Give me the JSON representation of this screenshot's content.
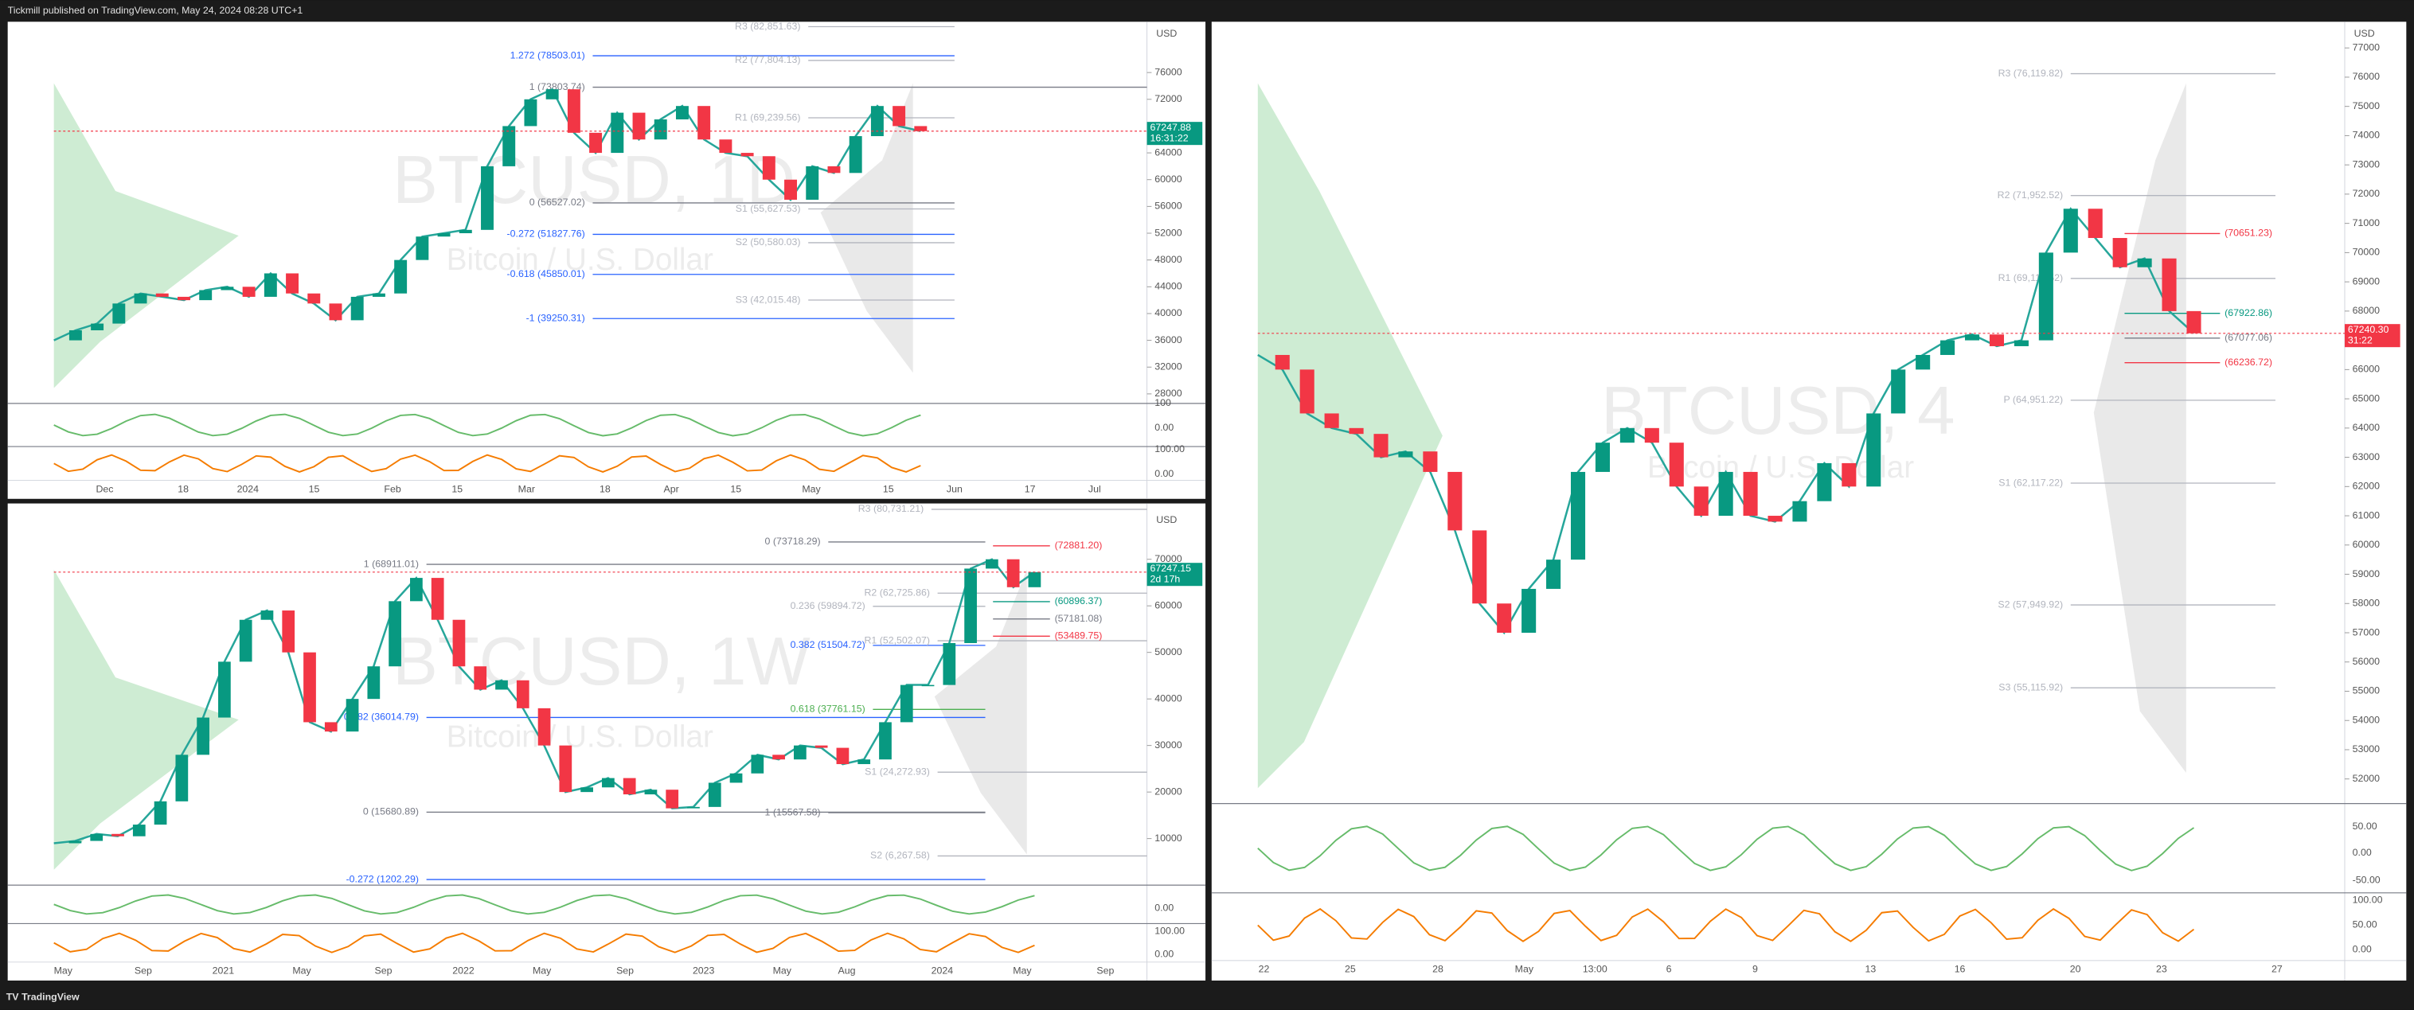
{
  "header": {
    "text": "Tickmill published on TradingView.com, May 24, 2024 08:28 UTC+1"
  },
  "footer": {
    "brand": "TradingView"
  },
  "panels": [
    {
      "symbol": "BTCUSD, 1D",
      "description": "Bitcoin / U.S. Dollar",
      "currency": "USD",
      "price_range": [
        83586,
        26575
      ],
      "price_ticks": [
        76000,
        72000,
        64000,
        60000,
        56000,
        52000,
        48000,
        44000,
        40000,
        36000,
        32000,
        28000
      ],
      "time_labels": [
        "Dec",
        "18",
        "2024",
        "15",
        "Feb",
        "15",
        "Mar",
        "18",
        "Apr",
        "15",
        "May",
        "15",
        "Jun",
        "17",
        "Jul"
      ],
      "levels": [
        {
          "label": "R3 (82,851.63)",
          "value": 82851.63,
          "color": "#b2b5be"
        },
        {
          "label": "1.272 (78503.01)",
          "value": 78503.01,
          "color": "#2962ff"
        },
        {
          "label": "R2 (77,804.13)",
          "value": 77804.13,
          "color": "#b2b5be"
        },
        {
          "label": "1 (73803.74)",
          "value": 73803.74,
          "color": "#787b86"
        },
        {
          "label": "R1 (69,239.56)",
          "value": 69239.56,
          "color": "#b2b5be"
        },
        {
          "label": "0 (56527.02)",
          "value": 56527.02,
          "color": "#787b86"
        },
        {
          "label": "S1 (55,627.53)",
          "value": 55627.53,
          "color": "#b2b5be"
        },
        {
          "label": "-0.272 (51827.76)",
          "value": 51827.76,
          "color": "#2962ff"
        },
        {
          "label": "S2 (50,580.03)",
          "value": 50580.03,
          "color": "#b2b5be"
        },
        {
          "label": "-0.618 (45850.01)",
          "value": 45850.01,
          "color": "#2962ff"
        },
        {
          "label": "S3 (42,015.48)",
          "value": 42015.48,
          "color": "#b2b5be"
        },
        {
          "label": "-1 (39250.31)",
          "value": 39250.31,
          "color": "#2962ff"
        }
      ],
      "closes": [
        36000,
        37500,
        38500,
        41500,
        43000,
        42500,
        42000,
        43500,
        44000,
        42500,
        46000,
        43000,
        41500,
        39000,
        42500,
        43000,
        48000,
        51500,
        52000,
        52500,
        62000,
        68000,
        72000,
        73500,
        67000,
        64000,
        70000,
        66000,
        69000,
        71000,
        66000,
        64000,
        63500,
        60000,
        57000,
        62000,
        61000,
        66500,
        71000,
        68000,
        67247.88
      ],
      "last_price": {
        "label": "67247.88",
        "value": 67247.88,
        "countdown": "16:31:22"
      },
      "indicator_ticks": [
        "100",
        "0.00",
        "100.00",
        "0.00"
      ]
    },
    {
      "symbol": "BTCUSD, 1W",
      "description": "Bitcoin / U.S. Dollar",
      "currency": "USD",
      "price_range": [
        81000,
        0
      ],
      "price_ticks": [
        70000,
        60000,
        50000,
        40000,
        30000,
        20000,
        10000
      ],
      "time_labels": [
        "May",
        "Sep",
        "2021",
        "May",
        "Sep",
        "2022",
        "May",
        "Sep",
        "2023",
        "May",
        "Aug",
        "2024",
        "May",
        "Sep"
      ],
      "levels": [
        {
          "label": "R3 (80,731.21)",
          "value": 80731.21,
          "color": "#b2b5be"
        },
        {
          "label": "0 (73718.29)",
          "value": 73718.29,
          "color": "#787b86"
        },
        {
          "label": "(72881.20)",
          "value": 72881.2,
          "color": "#f23645"
        },
        {
          "label": "1 (68911.01)",
          "value": 68911.01,
          "color": "#787b86"
        },
        {
          "label": "R2 (62,725.86)",
          "value": 62725.86,
          "color": "#b2b5be"
        },
        {
          "label": "(60896.37)",
          "value": 60896.37,
          "color": "#089981"
        },
        {
          "label": "0.236 (59894.72)",
          "value": 59894.72,
          "color": "#b2b5be"
        },
        {
          "label": "(57181.08)",
          "value": 57181.08,
          "color": "#787b86"
        },
        {
          "label": "0.382 (51504.72)",
          "value": 51504.72,
          "color": "#2962ff"
        },
        {
          "label": "R1 (52,502.07)",
          "value": 52502.07,
          "color": "#b2b5be"
        },
        {
          "label": "(53489.75)",
          "value": 53489.75,
          "color": "#f23645"
        },
        {
          "label": "0.382 (36014.79)",
          "value": 36014.79,
          "color": "#2962ff"
        },
        {
          "label": "0.618 (37761.15)",
          "value": 37761.15,
          "color": "#4caf50"
        },
        {
          "label": "S1 (24,272.93)",
          "value": 24272.93,
          "color": "#b2b5be"
        },
        {
          "label": "0 (15680.89)",
          "value": 15680.89,
          "color": "#787b86"
        },
        {
          "label": "1 (15567.58)",
          "value": 15567.58,
          "color": "#787b86"
        },
        {
          "label": "S2 (6,267.58)",
          "value": 6267.58,
          "color": "#b2b5be"
        },
        {
          "label": "-0.272 (1202.29)",
          "value": 1202.29,
          "color": "#2962ff"
        }
      ],
      "closes": [
        9000,
        9500,
        11000,
        10500,
        13000,
        18000,
        28000,
        36000,
        48000,
        57000,
        59000,
        50000,
        35000,
        33000,
        40000,
        47000,
        61000,
        66000,
        57000,
        47000,
        42000,
        44000,
        38000,
        30000,
        20000,
        21000,
        23000,
        19500,
        20500,
        16500,
        16800,
        22000,
        24000,
        28000,
        27000,
        30000,
        29500,
        26000,
        27000,
        35000,
        43000,
        43000,
        52000,
        68000,
        70000,
        64000,
        67247.15
      ],
      "last_price": {
        "label": "67247.15",
        "value": 67247.15,
        "countdown": "2d 17h"
      },
      "indicator_ticks": [
        "0.00",
        "100.00",
        "0.00"
      ]
    },
    {
      "symbol": "BTCUSD, 4",
      "description": "Bitcoin / U.S. Dollar",
      "currency": "USD",
      "price_range": [
        77895,
        51158
      ],
      "price_ticks": [
        77000,
        76000,
        75000,
        74000,
        73000,
        72000,
        71000,
        70000,
        69000,
        68000,
        66000,
        65000,
        64000,
        63000,
        62000,
        61000,
        60000,
        59000,
        58000,
        57000,
        56000,
        55000,
        54000,
        53000,
        52000
      ],
      "time_labels": [
        "22",
        "25",
        "28",
        "May",
        "13:00",
        "6",
        "9",
        "13",
        "16",
        "20",
        "23",
        "27"
      ],
      "levels": [
        {
          "label": "R3 (76,119.82)",
          "value": 76119.82,
          "color": "#b2b5be"
        },
        {
          "label": "R2 (71,952.52)",
          "value": 71952.52,
          "color": "#b2b5be"
        },
        {
          "label": "(70651.23)",
          "value": 70651.23,
          "color": "#f23645"
        },
        {
          "label": "R1 (69,118.52)",
          "value": 69118.52,
          "color": "#b2b5be"
        },
        {
          "label": "(67922.86)",
          "value": 67922.86,
          "color": "#089981"
        },
        {
          "label": "(67077.06)",
          "value": 67077.06,
          "color": "#787b86"
        },
        {
          "label": "(66236.72)",
          "value": 66236.72,
          "color": "#f23645"
        },
        {
          "label": "P (64,951.22)",
          "value": 64951.22,
          "color": "#b2b5be"
        },
        {
          "label": "S1 (62,117.22)",
          "value": 62117.22,
          "color": "#b2b5be"
        },
        {
          "label": "S2 (57,949.92)",
          "value": 57949.92,
          "color": "#b2b5be"
        },
        {
          "label": "S3 (55,115.92)",
          "value": 55115.92,
          "color": "#b2b5be"
        }
      ],
      "closes": [
        66500,
        66000,
        64500,
        64000,
        63800,
        63000,
        63200,
        62500,
        60500,
        58000,
        57000,
        58500,
        59500,
        62500,
        63500,
        64000,
        63500,
        62000,
        61000,
        62500,
        61000,
        60800,
        61500,
        62800,
        62000,
        64500,
        66000,
        66500,
        67000,
        67200,
        66800,
        67000,
        70000,
        71500,
        70500,
        69500,
        69800,
        68000,
        67240.3
      ],
      "last_price": {
        "label": "67240.30",
        "value": 67240.3,
        "countdown": "31:22"
      },
      "indicator_ticks": [
        "50.00",
        "0.00",
        "-50.00",
        "100.00",
        "50.00",
        "0.00"
      ]
    }
  ]
}
